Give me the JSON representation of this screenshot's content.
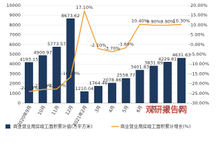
{
  "chart_data": {
    "type": "bar-line",
    "categories": [
      "2020年9月",
      "10月",
      "11月",
      "12月",
      "2021年2月",
      "3月",
      "4月",
      "5月",
      "6月",
      "7月",
      "8月",
      "9月"
    ],
    "series": [
      {
        "name": "商业营业用房竣工面积累计值(万平方米)",
        "type": "bar",
        "color": "#1f3a5f",
        "values": [
          4193.15,
          4900.97,
          5773.57,
          8673.62,
          1210.04,
          1764.46,
          2078.86,
          2558.77,
          3401.83,
          3831.89,
          4229.81,
          4631.63
        ]
      },
      {
        "name": "商业营业用房竣工面积累计增长(%)",
        "type": "line",
        "axis": "y2",
        "color": "#f2a541",
        "values": [
          -24.1,
          -23.0,
          -22.8,
          -16.7,
          17.1,
          -2.1,
          -3.7,
          -1.6,
          10.4,
          9.9,
          9.9,
          10.3
        ],
        "value_labels": [
          "-24.10%",
          "-23.00%",
          "-22.80%",
          "-16.70%",
          "17.10%",
          "-2.10%",
          "-3.70%",
          "-1.60%",
          "10.40%",
          "9.90%",
          "9.90%",
          "10.30%"
        ]
      }
    ],
    "ylim": [
      0,
      10000
    ],
    "yticks": [
      0,
      1000,
      2000,
      3000,
      4000,
      5000,
      6000,
      7000,
      8000,
      9000,
      10000
    ],
    "y2lim": [
      -30,
      20
    ],
    "y2ticks": [
      {
        "value": -30,
        "label": "-30.00%"
      },
      {
        "value": -25,
        "label": "-25.00%"
      },
      {
        "value": -20,
        "label": "-20.00%"
      },
      {
        "value": -15,
        "label": "-15.00%"
      },
      {
        "value": -10,
        "label": "-10.00%"
      },
      {
        "value": -5,
        "label": "-5.00%"
      },
      {
        "value": 0,
        "label": "0.00%"
      },
      {
        "value": 5,
        "label": "5.00%"
      },
      {
        "value": 10,
        "label": "10.00%"
      },
      {
        "value": 15,
        "label": "15.00%"
      },
      {
        "value": 20,
        "label": "20.00%"
      }
    ],
    "watermark": "观研报告网"
  }
}
